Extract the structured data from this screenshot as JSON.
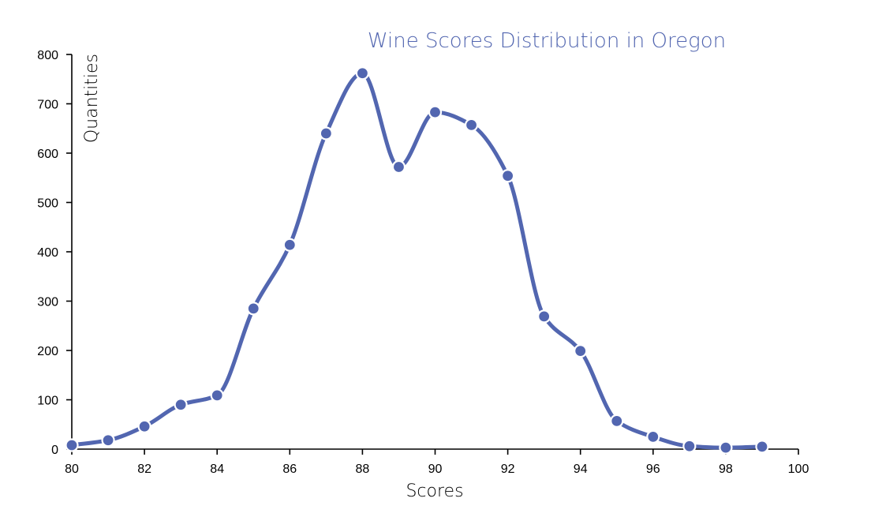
{
  "chart_data": {
    "type": "line",
    "title": "Wine Scores Distribution in Oregon",
    "xlabel": "Scores",
    "ylabel": "Quantities",
    "xlim": [
      80,
      100
    ],
    "ylim": [
      0,
      800
    ],
    "x_ticks": [
      80,
      82,
      84,
      86,
      88,
      90,
      92,
      94,
      96,
      98,
      100
    ],
    "y_ticks": [
      0,
      100,
      200,
      300,
      400,
      500,
      600,
      700,
      800
    ],
    "grid": false,
    "series": [
      {
        "x": [
          80,
          81,
          82,
          83,
          84,
          85,
          86,
          87,
          88,
          89,
          90,
          91,
          92,
          93,
          94,
          95,
          96,
          97,
          98,
          99
        ],
        "values": [
          8,
          18,
          46,
          90,
          109,
          285,
          414,
          640,
          762,
          572,
          683,
          657,
          554,
          269,
          199,
          57,
          25,
          6,
          3,
          5
        ]
      }
    ]
  },
  "colors": {
    "series": "#5266b0",
    "title": "#5266b0",
    "axis": "#000000"
  }
}
